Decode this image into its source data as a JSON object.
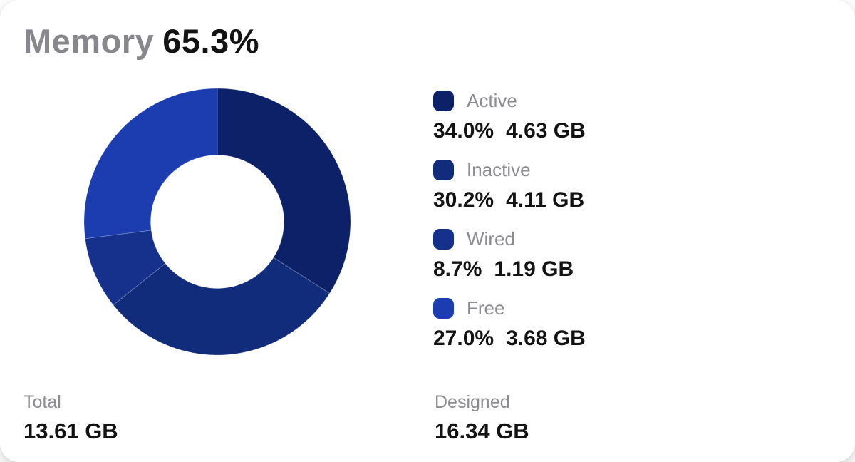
{
  "card": {
    "title": "Memory",
    "title_value": "65.3%"
  },
  "chart_data": {
    "type": "pie",
    "subtype": "donut",
    "title": "Memory 65.3%",
    "categories": [
      "Active",
      "Inactive",
      "Wired",
      "Free"
    ],
    "values_percent": [
      34.0,
      30.2,
      8.7,
      27.0
    ],
    "values_gb": [
      4.63,
      4.11,
      1.19,
      3.68
    ],
    "unit": "GB",
    "colors": [
      "#0d2168",
      "#122c7c",
      "#15318c",
      "#1b3db0"
    ],
    "start_angle_deg": 0,
    "direction": "clockwise",
    "inner_radius_ratio": 0.5,
    "legend_position": "right"
  },
  "legend": {
    "items": [
      {
        "id": "active",
        "label": "Active",
        "percent": "34.0%",
        "size": "4.63 GB",
        "color": "#0d2168"
      },
      {
        "id": "inactive",
        "label": "Inactive",
        "percent": "30.2%",
        "size": "4.11 GB",
        "color": "#122c7c"
      },
      {
        "id": "wired",
        "label": "Wired",
        "percent": "8.7%",
        "size": "1.19 GB",
        "color": "#15318c"
      },
      {
        "id": "free",
        "label": "Free",
        "percent": "27.0%",
        "size": "3.68 GB",
        "color": "#1b3db0"
      }
    ]
  },
  "footer": {
    "total_label": "Total",
    "total_value": "13.61 GB",
    "designed_label": "Designed",
    "designed_value": "16.34 GB"
  }
}
